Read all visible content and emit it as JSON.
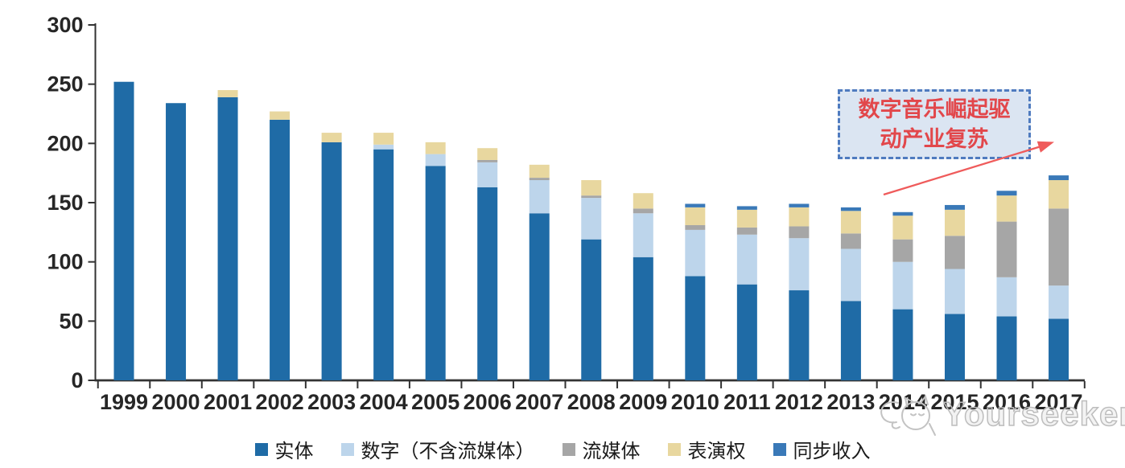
{
  "chart_data": {
    "type": "bar",
    "stacked": true,
    "categories": [
      "1999",
      "2000",
      "2001",
      "2002",
      "2003",
      "2004",
      "2005",
      "2006",
      "2007",
      "2008",
      "2009",
      "2010",
      "2011",
      "2012",
      "2013",
      "2014",
      "2015",
      "2016",
      "2017"
    ],
    "series": [
      {
        "name": "实体",
        "color": "#1f6ba6",
        "values": [
          252,
          234,
          239,
          220,
          201,
          195,
          181,
          163,
          141,
          119,
          104,
          88,
          81,
          76,
          67,
          60,
          56,
          54,
          52
        ]
      },
      {
        "name": "数字（不含流媒体）",
        "color": "#bdd5eb",
        "values": [
          0,
          0,
          0,
          0,
          0,
          4,
          10,
          21,
          28,
          35,
          37,
          39,
          42,
          44,
          44,
          40,
          38,
          33,
          28
        ]
      },
      {
        "name": "流媒体",
        "color": "#a6a6a6",
        "values": [
          0,
          0,
          0,
          0,
          0,
          0,
          0,
          2,
          2,
          2,
          4,
          4,
          6,
          10,
          13,
          19,
          28,
          47,
          65
        ]
      },
      {
        "name": "表演权",
        "color": "#e8d79f",
        "values": [
          0,
          0,
          6,
          7,
          8,
          10,
          10,
          10,
          11,
          13,
          13,
          15,
          15,
          16,
          19,
          20,
          22,
          22,
          24
        ]
      },
      {
        "name": "同步收入",
        "color": "#3a79b8",
        "values": [
          0,
          0,
          0,
          0,
          0,
          0,
          0,
          0,
          0,
          0,
          0,
          3,
          3,
          3,
          3,
          3,
          4,
          4,
          4
        ]
      }
    ],
    "title": "",
    "xlabel": "",
    "ylabel": "",
    "ylim": [
      0,
      300
    ],
    "yticks": [
      0,
      50,
      100,
      150,
      200,
      250,
      300
    ],
    "grid": false,
    "legend_position": "bottom"
  },
  "annotation": {
    "line1": "数字音乐崛起驱",
    "line2": "动产业复苏",
    "text_color": "#e2474b",
    "box_border_color": "#4f7bbf",
    "box_fill_color": "#dbe5f2",
    "arrow_color": "#ef5b5b"
  },
  "watermark": {
    "text": "Yourseeker",
    "logo": "cat-sketch-icon",
    "color": "#bdbdbd"
  },
  "axis": {
    "line_color": "#333333",
    "label_color": "#262626"
  }
}
